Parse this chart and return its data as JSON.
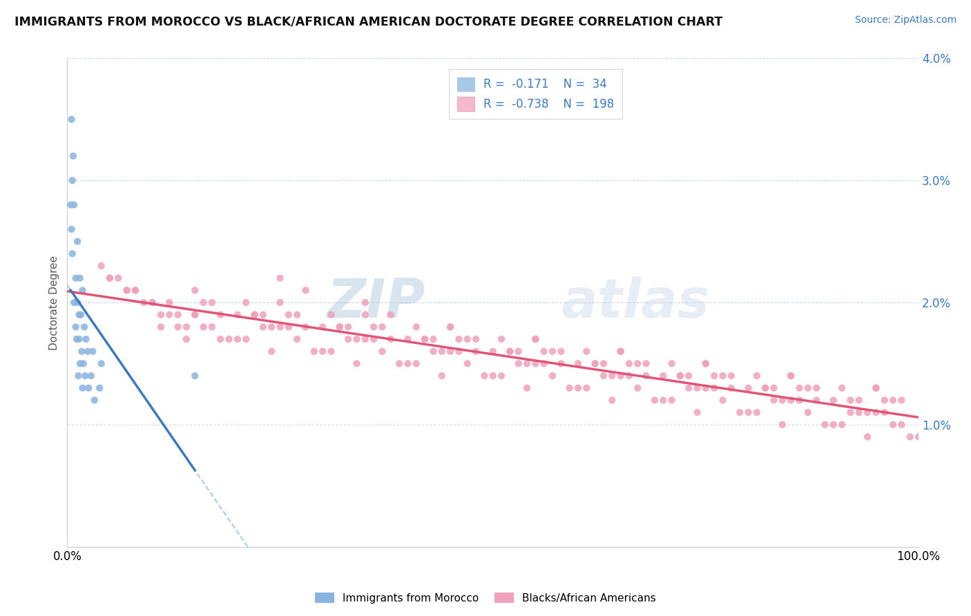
{
  "title": "IMMIGRANTS FROM MOROCCO VS BLACK/AFRICAN AMERICAN DOCTORATE DEGREE CORRELATION CHART",
  "source": "Source: ZipAtlas.com",
  "ylabel": "Doctorate Degree",
  "xlim": [
    0.0,
    1.0
  ],
  "ylim": [
    0.0,
    0.04
  ],
  "morocco_color": "#8ab4e0",
  "baa_color": "#f0a0bb",
  "trend_morocco_color": "#3a7abf",
  "trend_baa_color": "#e05575",
  "trend_dashed_color": "#aacce8",
  "watermark": "ZIPatlas",
  "watermark_color": "#c5d8ee",
  "background_color": "#ffffff",
  "grid_color": "#e0e0e0",
  "legend_blue_color": "#a8c8e8",
  "legend_pink_color": "#f5b8cc",
  "morocco_x": [
    0.005,
    0.007,
    0.006,
    0.004,
    0.008,
    0.005,
    0.006,
    0.012,
    0.01,
    0.008,
    0.015,
    0.012,
    0.01,
    0.014,
    0.011,
    0.018,
    0.016,
    0.014,
    0.02,
    0.017,
    0.015,
    0.013,
    0.022,
    0.019,
    0.021,
    0.018,
    0.024,
    0.03,
    0.028,
    0.025,
    0.032,
    0.04,
    0.038,
    0.15
  ],
  "morocco_y": [
    0.035,
    0.032,
    0.03,
    0.028,
    0.028,
    0.026,
    0.024,
    0.025,
    0.022,
    0.02,
    0.022,
    0.02,
    0.018,
    0.019,
    0.017,
    0.021,
    0.019,
    0.017,
    0.018,
    0.016,
    0.015,
    0.014,
    0.017,
    0.015,
    0.014,
    0.013,
    0.016,
    0.016,
    0.014,
    0.013,
    0.012,
    0.015,
    0.013,
    0.014
  ],
  "baa_x": [
    0.04,
    0.06,
    0.08,
    0.1,
    0.12,
    0.14,
    0.15,
    0.17,
    0.18,
    0.2,
    0.05,
    0.07,
    0.09,
    0.11,
    0.13,
    0.16,
    0.19,
    0.22,
    0.24,
    0.25,
    0.27,
    0.28,
    0.3,
    0.21,
    0.23,
    0.26,
    0.29,
    0.32,
    0.34,
    0.35,
    0.37,
    0.38,
    0.4,
    0.31,
    0.33,
    0.36,
    0.39,
    0.42,
    0.44,
    0.45,
    0.47,
    0.48,
    0.5,
    0.41,
    0.43,
    0.46,
    0.49,
    0.52,
    0.54,
    0.55,
    0.57,
    0.58,
    0.6,
    0.51,
    0.53,
    0.56,
    0.59,
    0.62,
    0.64,
    0.65,
    0.67,
    0.68,
    0.7,
    0.61,
    0.63,
    0.66,
    0.69,
    0.72,
    0.74,
    0.75,
    0.77,
    0.78,
    0.8,
    0.71,
    0.73,
    0.76,
    0.79,
    0.82,
    0.84,
    0.85,
    0.87,
    0.88,
    0.9,
    0.81,
    0.83,
    0.86,
    0.89,
    0.92,
    0.94,
    0.95,
    0.97,
    0.98,
    1.0,
    0.91,
    0.93,
    0.96,
    0.99,
    0.15,
    0.25,
    0.35,
    0.45,
    0.55,
    0.65,
    0.75,
    0.85,
    0.95,
    0.1,
    0.2,
    0.3,
    0.4,
    0.5,
    0.6,
    0.7,
    0.8,
    0.9,
    0.08,
    0.18,
    0.28,
    0.38,
    0.48,
    0.58,
    0.68,
    0.78,
    0.88,
    0.98,
    0.12,
    0.22,
    0.32,
    0.42,
    0.52,
    0.62,
    0.72,
    0.82,
    0.92,
    0.05,
    0.15,
    0.25,
    0.35,
    0.45,
    0.55,
    0.65,
    0.75,
    0.85,
    0.95,
    0.07,
    0.17,
    0.27,
    0.37,
    0.47,
    0.57,
    0.67,
    0.77,
    0.87,
    0.97,
    0.16,
    0.26,
    0.36,
    0.46,
    0.56,
    0.66,
    0.76,
    0.86,
    0.96,
    0.13,
    0.23,
    0.33,
    0.43,
    0.53,
    0.63,
    0.73,
    0.83,
    0.93,
    0.11,
    0.21,
    0.31,
    0.41,
    0.51,
    0.61,
    0.71,
    0.81,
    0.91,
    0.14,
    0.24,
    0.34,
    0.44,
    0.54,
    0.64,
    0.74,
    0.84,
    0.94
  ],
  "baa_y": [
    0.023,
    0.022,
    0.021,
    0.02,
    0.019,
    0.018,
    0.019,
    0.018,
    0.017,
    0.017,
    0.022,
    0.021,
    0.02,
    0.019,
    0.018,
    0.018,
    0.017,
    0.019,
    0.018,
    0.022,
    0.017,
    0.021,
    0.016,
    0.02,
    0.019,
    0.018,
    0.016,
    0.018,
    0.017,
    0.02,
    0.016,
    0.019,
    0.015,
    0.019,
    0.018,
    0.017,
    0.015,
    0.017,
    0.016,
    0.018,
    0.015,
    0.017,
    0.014,
    0.018,
    0.017,
    0.016,
    0.014,
    0.016,
    0.015,
    0.017,
    0.014,
    0.016,
    0.013,
    0.017,
    0.016,
    0.015,
    0.013,
    0.015,
    0.014,
    0.016,
    0.013,
    0.015,
    0.012,
    0.016,
    0.015,
    0.014,
    0.012,
    0.014,
    0.013,
    0.015,
    0.012,
    0.014,
    0.011,
    0.015,
    0.014,
    0.013,
    0.011,
    0.013,
    0.012,
    0.014,
    0.011,
    0.013,
    0.01,
    0.014,
    0.013,
    0.012,
    0.01,
    0.012,
    0.011,
    0.013,
    0.01,
    0.012,
    0.009,
    0.013,
    0.012,
    0.011,
    0.009,
    0.019,
    0.018,
    0.017,
    0.016,
    0.015,
    0.014,
    0.013,
    0.012,
    0.011,
    0.02,
    0.019,
    0.018,
    0.017,
    0.016,
    0.015,
    0.014,
    0.013,
    0.012,
    0.021,
    0.019,
    0.018,
    0.017,
    0.016,
    0.015,
    0.014,
    0.013,
    0.012,
    0.01,
    0.02,
    0.019,
    0.018,
    0.017,
    0.016,
    0.015,
    0.014,
    0.013,
    0.011,
    0.022,
    0.021,
    0.02,
    0.019,
    0.018,
    0.017,
    0.016,
    0.015,
    0.014,
    0.013,
    0.021,
    0.02,
    0.019,
    0.018,
    0.017,
    0.016,
    0.015,
    0.014,
    0.013,
    0.012,
    0.02,
    0.019,
    0.018,
    0.017,
    0.016,
    0.015,
    0.014,
    0.013,
    0.012,
    0.019,
    0.018,
    0.017,
    0.016,
    0.015,
    0.014,
    0.013,
    0.012,
    0.011,
    0.018,
    0.017,
    0.016,
    0.015,
    0.014,
    0.013,
    0.012,
    0.011,
    0.01,
    0.017,
    0.016,
    0.015,
    0.014,
    0.013,
    0.012,
    0.011,
    0.01,
    0.009
  ]
}
